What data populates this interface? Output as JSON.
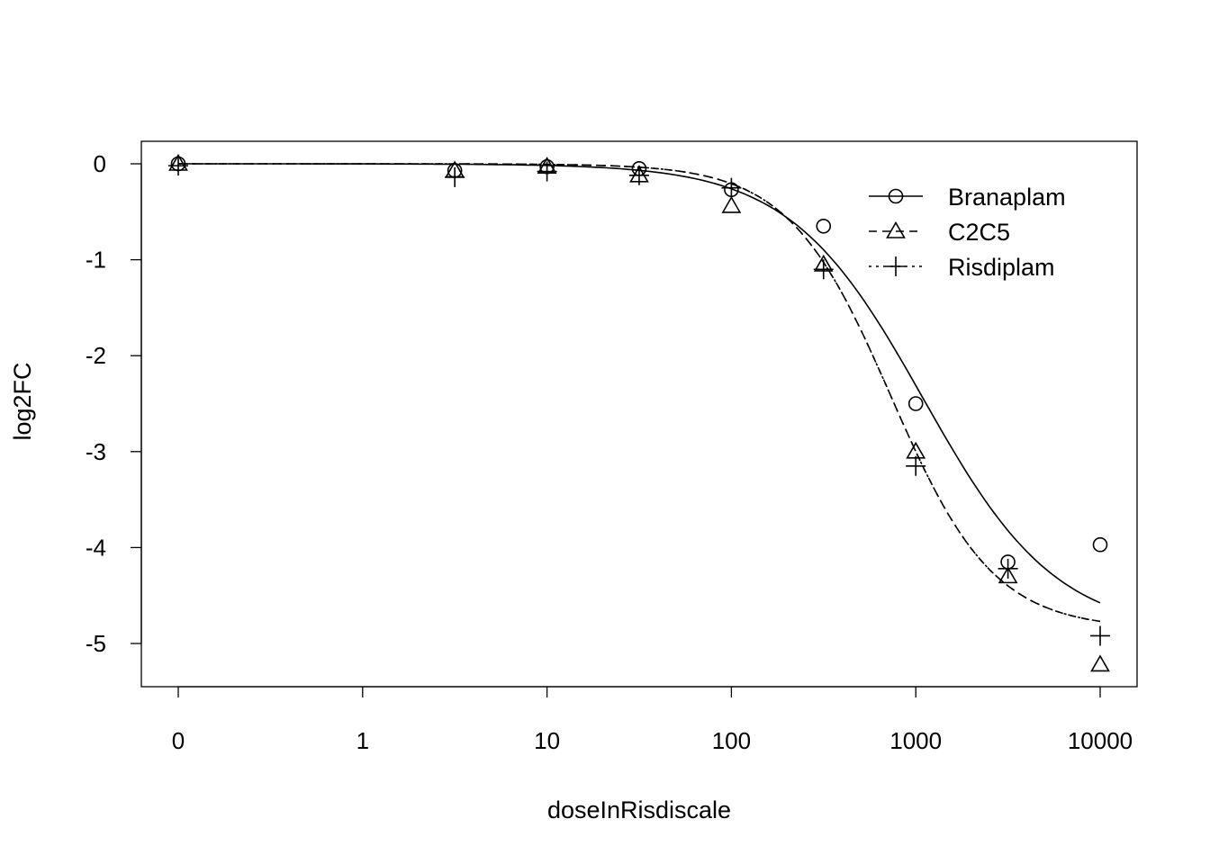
{
  "chart_data": {
    "type": "scatter",
    "title": "",
    "xlabel": "doseInRisdiscale",
    "ylabel": "log2FC",
    "x_scale": "log",
    "x_ticks": [
      {
        "value": 0.1,
        "label": "0"
      },
      {
        "value": 1,
        "label": "1"
      },
      {
        "value": 10,
        "label": "10"
      },
      {
        "value": 100,
        "label": "100"
      },
      {
        "value": 1000,
        "label": "1000"
      },
      {
        "value": 10000,
        "label": "10000"
      }
    ],
    "y_ticks": [
      0,
      -1,
      -2,
      -3,
      -4,
      -5
    ],
    "y_tick_labels": [
      "0",
      "-1",
      "-2",
      "-3",
      "-4",
      "-5"
    ],
    "xlim": [
      0.063,
      15000
    ],
    "ylim": [
      -5.45,
      0.24
    ],
    "grid": false,
    "legend_position": "top-right",
    "x": [
      0.1,
      3.16,
      10,
      31.6,
      100,
      316,
      1000,
      3162,
      10000
    ],
    "series": [
      {
        "name": "Branaplam",
        "marker": "circle",
        "line": "solid",
        "values": [
          0,
          -0.07,
          -0.03,
          -0.05,
          -0.27,
          -0.65,
          -2.5,
          -4.15,
          -3.97
        ],
        "fit": {
          "bottom": -4.9,
          "ec50": 1100,
          "hill": 1.2
        }
      },
      {
        "name": "C2C5",
        "marker": "triangle",
        "line": "dashed",
        "values": [
          0,
          -0.07,
          -0.03,
          -0.12,
          -0.44,
          -1.05,
          -3.0,
          -4.3,
          -5.22
        ],
        "fit": {
          "bottom": -4.85,
          "ec50": 734,
          "hill": 1.56
        }
      },
      {
        "name": "Risdiplam",
        "marker": "plus",
        "line": "dotted",
        "values": [
          -0.02,
          -0.14,
          -0.08,
          -0.12,
          -0.25,
          -1.1,
          -3.15,
          -4.22,
          -4.92
        ],
        "fit": {
          "bottom": -4.85,
          "ec50": 734,
          "hill": 1.56
        }
      }
    ],
    "colors": {
      "ink": "#000000",
      "background": "#ffffff"
    }
  }
}
